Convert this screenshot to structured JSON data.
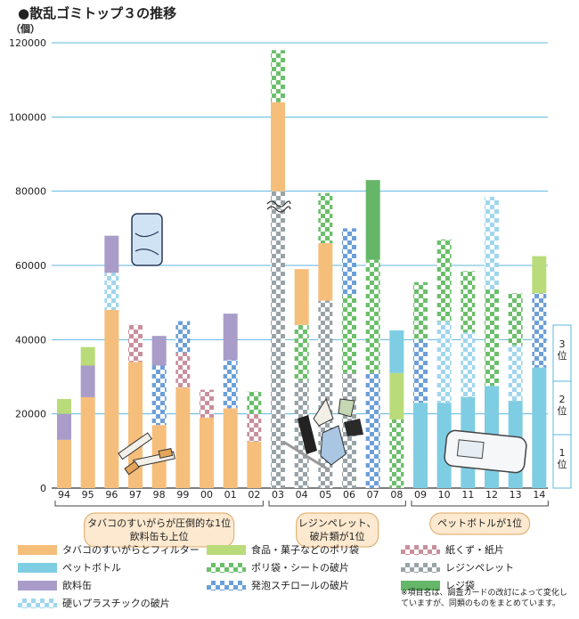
{
  "title": "●散乱ゴミトップ３の推移",
  "unit": "（個）",
  "colors": {
    "tobacco": "#f6be7b",
    "petbottle": "#7fcde3",
    "can": "#a99cc9",
    "rejibukuro": "#65b668",
    "shokuhin": "#b9db7a",
    "polybukuro": "#6bbf6a",
    "happo": "#6c9fd9",
    "katai": "#9fd6ee",
    "kamikuzu": "#c98f9b",
    "pellet": "#98a3a8",
    "grid": "#5db6df"
  },
  "chart_data": {
    "type": "bar",
    "stacked": true,
    "title": "散乱ゴミトップ３の推移",
    "ylabel": "（個）",
    "yticks": [
      "0",
      "20000",
      "40000",
      "60000",
      "80000",
      "100000",
      "120000"
    ],
    "ylim": [
      0,
      120000
    ],
    "axis_break_at": "03",
    "categories": [
      "94",
      "95",
      "96",
      "97",
      "98",
      "99",
      "00",
      "01",
      "02",
      "03",
      "04",
      "05",
      "06",
      "07",
      "08",
      "09",
      "10",
      "11",
      "12",
      "13",
      "14"
    ],
    "bars": [
      {
        "year": "94",
        "segments": [
          {
            "item": "tobacco",
            "value": 13000
          },
          {
            "item": "can",
            "value": 7000
          },
          {
            "item": "shokuhin",
            "value": 4000
          }
        ]
      },
      {
        "year": "95",
        "segments": [
          {
            "item": "tobacco",
            "value": 24500
          },
          {
            "item": "can",
            "value": 8500
          },
          {
            "item": "shokuhin",
            "value": 5000
          }
        ]
      },
      {
        "year": "96",
        "segments": [
          {
            "item": "tobacco",
            "value": 48000
          },
          {
            "item": "katai",
            "value": 10000
          },
          {
            "item": "can",
            "value": 10000
          }
        ]
      },
      {
        "year": "97",
        "segments": [
          {
            "item": "tobacco",
            "value": 34000
          },
          {
            "item": "kamikuzu",
            "value": 10000
          }
        ]
      },
      {
        "year": "98",
        "segments": [
          {
            "item": "tobacco",
            "value": 17000
          },
          {
            "item": "happo",
            "value": 16000
          },
          {
            "item": "can",
            "value": 8000
          }
        ]
      },
      {
        "year": "99",
        "segments": [
          {
            "item": "tobacco",
            "value": 27000
          },
          {
            "item": "kamikuzu",
            "value": 9500
          },
          {
            "item": "happo",
            "value": 8500
          }
        ]
      },
      {
        "year": "00",
        "segments": [
          {
            "item": "tobacco",
            "value": 19000
          },
          {
            "item": "kamikuzu",
            "value": 7500
          }
        ]
      },
      {
        "year": "01",
        "segments": [
          {
            "item": "tobacco",
            "value": 21500
          },
          {
            "item": "happo",
            "value": 13000
          },
          {
            "item": "can",
            "value": 12500
          }
        ]
      },
      {
        "year": "02",
        "segments": [
          {
            "item": "tobacco",
            "value": 12500
          },
          {
            "item": "kamikuzu",
            "value": 7500
          },
          {
            "item": "polybukuro",
            "value": 6000
          }
        ]
      },
      {
        "year": "03",
        "segments": [
          {
            "item": "pellet",
            "value": 80000
          },
          {
            "item": "tobacco",
            "value": 24000
          },
          {
            "item": "polybukuro",
            "value": 14000
          }
        ]
      },
      {
        "year": "04",
        "segments": [
          {
            "item": "pellet",
            "value": 29000
          },
          {
            "item": "polybukuro",
            "value": 15000
          },
          {
            "item": "tobacco",
            "value": 15000
          }
        ]
      },
      {
        "year": "05",
        "segments": [
          {
            "item": "pellet",
            "value": 50500
          },
          {
            "item": "tobacco",
            "value": 15500
          },
          {
            "item": "polybukuro",
            "value": 13500
          }
        ]
      },
      {
        "year": "06",
        "segments": [
          {
            "item": "pellet",
            "value": 31000
          },
          {
            "item": "polybukuro",
            "value": 21000
          },
          {
            "item": "happo",
            "value": 18000
          }
        ]
      },
      {
        "year": "07",
        "segments": [
          {
            "item": "happo",
            "value": 31000
          },
          {
            "item": "polybukuro",
            "value": 30500
          },
          {
            "item": "rejibukuro",
            "value": 21500
          }
        ]
      },
      {
        "year": "08",
        "segments": [
          {
            "item": "polybukuro",
            "value": 18500
          },
          {
            "item": "shokuhin",
            "value": 12500
          },
          {
            "item": "petbottle",
            "value": 11500
          }
        ]
      },
      {
        "year": "09",
        "segments": [
          {
            "item": "petbottle",
            "value": 23000
          },
          {
            "item": "happo",
            "value": 17000
          },
          {
            "item": "polybukuro",
            "value": 15500
          }
        ]
      },
      {
        "year": "10",
        "segments": [
          {
            "item": "petbottle",
            "value": 23000
          },
          {
            "item": "katai",
            "value": 22000
          },
          {
            "item": "polybukuro",
            "value": 22000
          }
        ]
      },
      {
        "year": "11",
        "segments": [
          {
            "item": "petbottle",
            "value": 24500
          },
          {
            "item": "katai",
            "value": 17500
          },
          {
            "item": "polybukuro",
            "value": 16500
          }
        ]
      },
      {
        "year": "12",
        "segments": [
          {
            "item": "petbottle",
            "value": 27500
          },
          {
            "item": "polybukuro",
            "value": 26000
          },
          {
            "item": "katai",
            "value": 25000
          }
        ]
      },
      {
        "year": "13",
        "segments": [
          {
            "item": "petbottle",
            "value": 23500
          },
          {
            "item": "katai",
            "value": 15000
          },
          {
            "item": "polybukuro",
            "value": 14000
          }
        ]
      },
      {
        "year": "14",
        "segments": [
          {
            "item": "petbottle",
            "value": 32500
          },
          {
            "item": "happo",
            "value": 20000
          },
          {
            "item": "shokuhin",
            "value": 10000
          }
        ]
      }
    ],
    "rank_labels": [
      "3位",
      "2位",
      "1位"
    ],
    "period_annotations": [
      {
        "from": "94",
        "to": "02",
        "text": [
          "タバコのすいがらが圧倒的な1位",
          "飲料缶も上位"
        ]
      },
      {
        "from": "03",
        "to": "08",
        "text": [
          "レジンペレット、",
          "破片類が1位"
        ]
      },
      {
        "from": "09",
        "to": "14",
        "text": [
          "ペットボトルが1位"
        ]
      }
    ]
  },
  "legend": [
    {
      "item": "tobacco",
      "label": "タバコのすいがらとフィルター",
      "pattern": "solid"
    },
    {
      "item": "shokuhin",
      "label": "食品・菓子などのポリ袋",
      "pattern": "solid"
    },
    {
      "item": "kamikuzu",
      "label": "紙くず・紙片",
      "pattern": "check"
    },
    {
      "item": "petbottle",
      "label": "ペットボトル",
      "pattern": "solid"
    },
    {
      "item": "polybukuro",
      "label": "ポリ袋・シートの破片",
      "pattern": "check"
    },
    {
      "item": "pellet",
      "label": "レジンペレット",
      "pattern": "check"
    },
    {
      "item": "can",
      "label": "飲料缶",
      "pattern": "solid"
    },
    {
      "item": "happo",
      "label": "発泡スチロールの破片",
      "pattern": "check"
    },
    {
      "item": "rejibukuro",
      "label": "レジ袋",
      "pattern": "solid"
    },
    {
      "item": "katai",
      "label": "硬いプラスチックの破片",
      "pattern": "check"
    }
  ],
  "note": "※項目名は、調査カードの改訂によって変化していますが、同類のものをまとめています。"
}
